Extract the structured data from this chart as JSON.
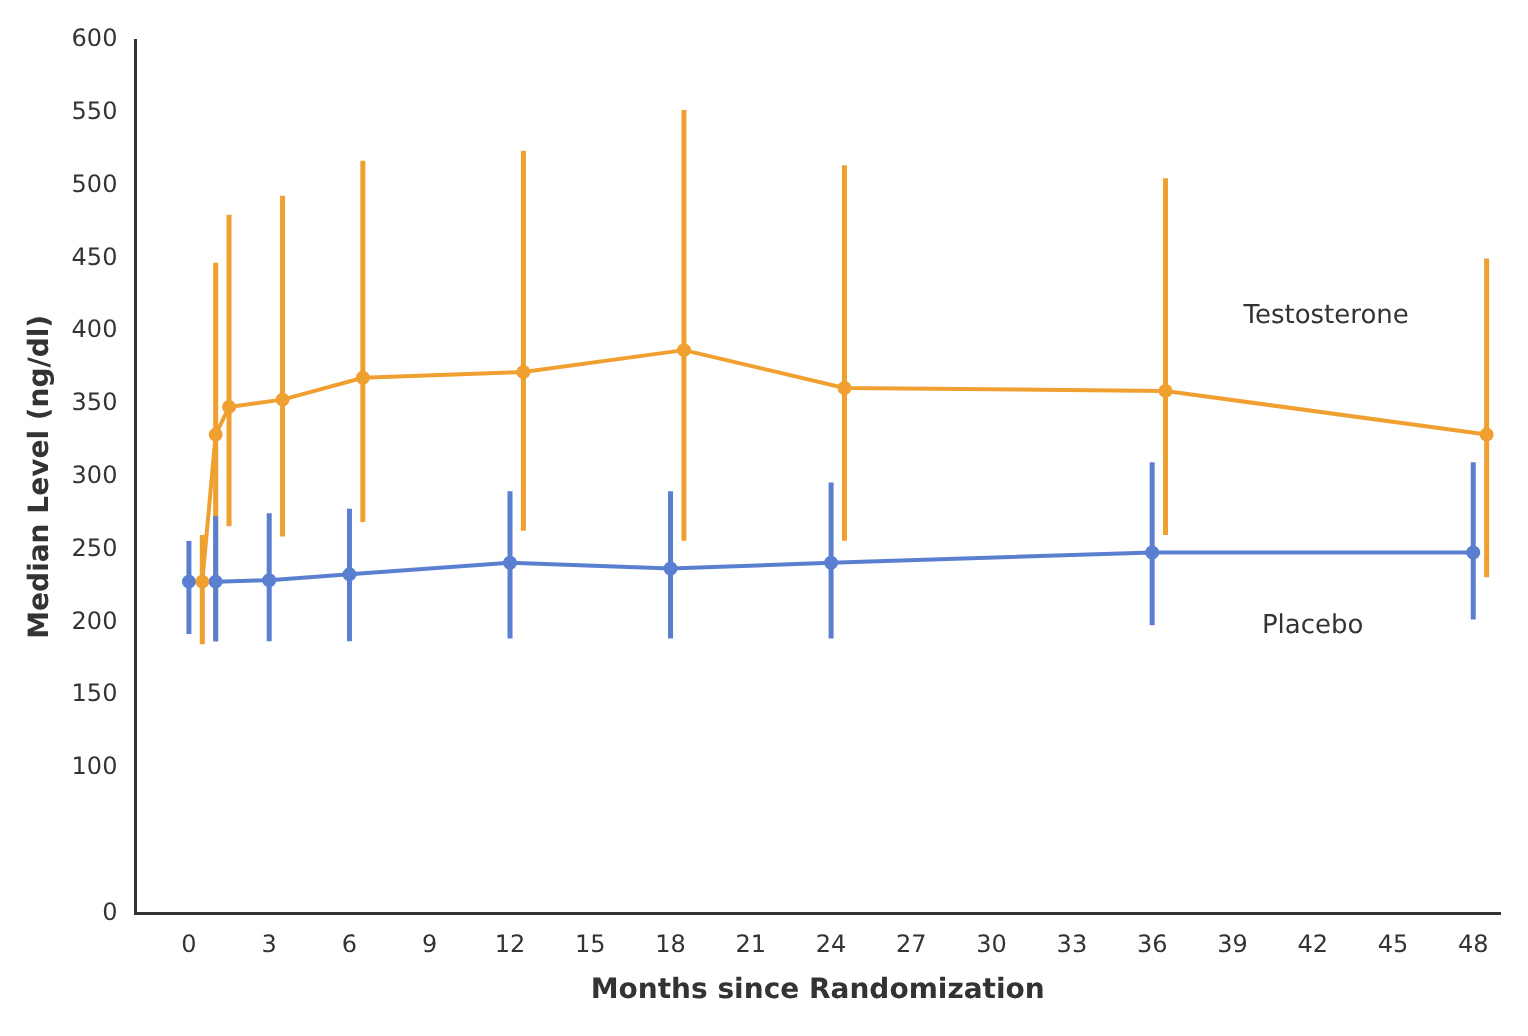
{
  "chart_data": {
    "type": "line",
    "xlabel": "Months since Randomization",
    "ylabel": "Median Level (ng/dl)",
    "xlim": [
      -2,
      49
    ],
    "xticks": [
      0,
      3,
      6,
      9,
      12,
      15,
      18,
      21,
      24,
      27,
      30,
      33,
      36,
      39,
      42,
      45,
      48
    ],
    "ylim": [
      0,
      600
    ],
    "yticks": [
      0,
      100,
      150,
      200,
      250,
      300,
      350,
      400,
      450,
      500,
      550,
      600
    ],
    "grid": false,
    "legend": false,
    "marker": "circle",
    "line_style": "solid",
    "series": [
      {
        "name": "Testosterone",
        "color": "#f0a030",
        "x": [
          0.5,
          1,
          1.5,
          3.5,
          6.5,
          12.5,
          18.5,
          24.5,
          36.5,
          48.5
        ],
        "values": [
          228,
          329,
          348,
          353,
          368,
          372,
          387,
          361,
          359,
          329
        ],
        "errors": [
          [
            185,
            260
          ],
          [
            187,
            447
          ],
          [
            266,
            480
          ],
          [
            259,
            493
          ],
          [
            269,
            517
          ],
          [
            263,
            524
          ],
          [
            256,
            552
          ],
          [
            256,
            514
          ],
          [
            260,
            505
          ],
          [
            231,
            450
          ]
        ]
      },
      {
        "name": "Placebo",
        "color": "#5b7fd0",
        "x": [
          0,
          1,
          3,
          6,
          12,
          18,
          24,
          36,
          48
        ],
        "values": [
          228,
          228,
          229,
          233,
          241,
          237,
          241,
          248,
          248
        ],
        "errors": [
          [
            192,
            256
          ],
          [
            187,
            273
          ],
          [
            187,
            275
          ],
          [
            187,
            278
          ],
          [
            189,
            290
          ],
          [
            189,
            290
          ],
          [
            189,
            296
          ],
          [
            198,
            310
          ],
          [
            202,
            310
          ]
        ]
      }
    ]
  }
}
